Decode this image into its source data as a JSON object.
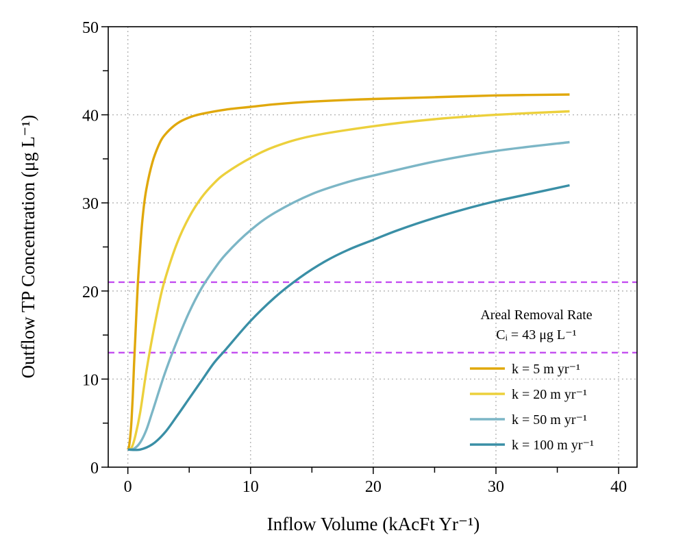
{
  "chart_data": {
    "type": "line",
    "title": "",
    "xlabel": "Inflow Volume (kAcFt Yr⁻¹)",
    "ylabel": "Outflow TP Concentration (μg L⁻¹)",
    "xlim": [
      -1.6,
      41.5
    ],
    "ylim": [
      0,
      50
    ],
    "xticks": [
      0,
      10,
      20,
      30,
      40
    ],
    "yticks": [
      0,
      10,
      20,
      30,
      40,
      50
    ],
    "grid": true,
    "legend": {
      "placement": "bottom-right",
      "title": "Areal Removal Rate",
      "subtitle": "Cᵢ = 43 μg L⁻¹"
    },
    "reference_lines": [
      {
        "orientation": "horizontal",
        "y": 21,
        "color": "#c34df0",
        "style": "dashed"
      },
      {
        "orientation": "horizontal",
        "y": 13,
        "color": "#c34df0",
        "style": "dashed"
      }
    ],
    "series": [
      {
        "name": "k = 5 m yr⁻¹",
        "color": "#e0a80c",
        "points": [
          [
            0,
            2
          ],
          [
            0.1,
            2.4
          ],
          [
            0.2,
            3.5
          ],
          [
            0.3,
            5.3
          ],
          [
            0.4,
            8
          ],
          [
            0.5,
            11.5
          ],
          [
            0.6,
            14.5
          ],
          [
            0.8,
            20.5
          ],
          [
            1,
            24.8
          ],
          [
            1.2,
            28.3
          ],
          [
            1.5,
            31.5
          ],
          [
            2,
            34.6
          ],
          [
            2.5,
            36.5
          ],
          [
            3,
            37.7
          ],
          [
            4,
            39
          ],
          [
            5,
            39.7
          ],
          [
            6,
            40.1
          ],
          [
            8,
            40.6
          ],
          [
            10,
            40.9
          ],
          [
            12,
            41.2
          ],
          [
            15,
            41.5
          ],
          [
            20,
            41.8
          ],
          [
            25,
            42
          ],
          [
            30,
            42.2
          ],
          [
            36,
            42.3
          ]
        ]
      },
      {
        "name": "k = 20 m yr⁻¹",
        "color": "#ecd03c",
        "points": [
          [
            0,
            2
          ],
          [
            0.3,
            2.2
          ],
          [
            0.6,
            3.5
          ],
          [
            1,
            6.2
          ],
          [
            1.5,
            10.8
          ],
          [
            2,
            14.8
          ],
          [
            2.5,
            18.3
          ],
          [
            3,
            21.2
          ],
          [
            4,
            25.4
          ],
          [
            5,
            28.4
          ],
          [
            6,
            30.6
          ],
          [
            7,
            32.2
          ],
          [
            8,
            33.4
          ],
          [
            10,
            35.1
          ],
          [
            12,
            36.4
          ],
          [
            15,
            37.6
          ],
          [
            20,
            38.7
          ],
          [
            25,
            39.5
          ],
          [
            30,
            40
          ],
          [
            36,
            40.4
          ]
        ]
      },
      {
        "name": "k = 50 m yr⁻¹",
        "color": "#7cb6c6",
        "points": [
          [
            0,
            2
          ],
          [
            0.5,
            2.1
          ],
          [
            1,
            2.8
          ],
          [
            1.5,
            4.2
          ],
          [
            2,
            6.3
          ],
          [
            3,
            10.6
          ],
          [
            4,
            14.3
          ],
          [
            5,
            17.6
          ],
          [
            6,
            20.3
          ],
          [
            7,
            22.4
          ],
          [
            8,
            24.2
          ],
          [
            10,
            26.9
          ],
          [
            12,
            28.9
          ],
          [
            15,
            31
          ],
          [
            18,
            32.4
          ],
          [
            20,
            33.1
          ],
          [
            25,
            34.7
          ],
          [
            30,
            35.9
          ],
          [
            36,
            36.9
          ]
        ]
      },
      {
        "name": "k = 100 m yr⁻¹",
        "color": "#3a8fa6",
        "points": [
          [
            0,
            2
          ],
          [
            1,
            2
          ],
          [
            2,
            2.6
          ],
          [
            3,
            3.9
          ],
          [
            4,
            5.8
          ],
          [
            5,
            7.8
          ],
          [
            6,
            9.8
          ],
          [
            7,
            11.8
          ],
          [
            8,
            13.4
          ],
          [
            10,
            16.6
          ],
          [
            12,
            19.3
          ],
          [
            14,
            21.5
          ],
          [
            16,
            23.3
          ],
          [
            18,
            24.7
          ],
          [
            20,
            25.8
          ],
          [
            22,
            26.9
          ],
          [
            25,
            28.3
          ],
          [
            28,
            29.5
          ],
          [
            30,
            30.2
          ],
          [
            33,
            31.1
          ],
          [
            36,
            32
          ]
        ]
      }
    ]
  }
}
